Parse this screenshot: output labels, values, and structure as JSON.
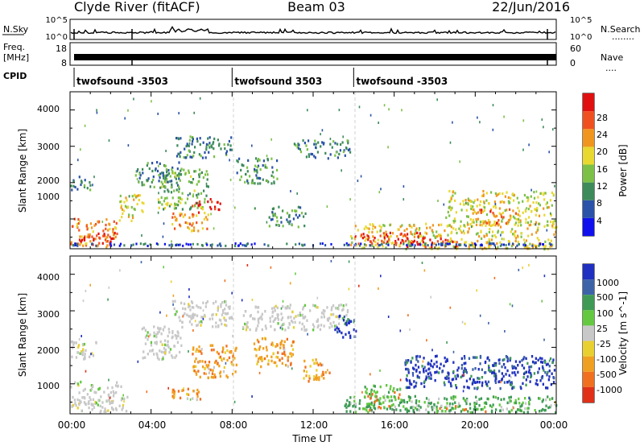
{
  "header": {
    "station": "Clyde River (fitACF)",
    "beam": "Beam 03",
    "date": "22/Jun/2016"
  },
  "housekeeping": {
    "nsky_label": "N.Sky",
    "nsearch_label": "N.Search",
    "nsearch_dots": "........",
    "noise_axis_top": "10^5",
    "noise_axis_bottom": "10^0",
    "freq_label": "Freq.",
    "freq_unit": "[MHz]",
    "freq_ticks": [
      "18",
      "8"
    ],
    "nave_label": "Nave",
    "nave_dots": "....",
    "nave_ticks": [
      "60",
      "0"
    ],
    "cpid_label": "CPID",
    "cpid_segments": [
      {
        "name": "twofsound -3503",
        "start_hour": 0.2,
        "end_hour": 8.0
      },
      {
        "name": "twofsound 3503",
        "start_hour": 8.0,
        "end_hour": 14.0
      },
      {
        "name": "twofsound -3503",
        "start_hour": 14.0,
        "end_hour": 24.0
      }
    ]
  },
  "colors": {
    "power_scale": [
      "#1010ee",
      "#2a52a8",
      "#3d8a5a",
      "#7cc048",
      "#e8d830",
      "#f0961e",
      "#f05020",
      "#e01010"
    ],
    "velocity_scale": [
      "#2030c0",
      "#3c62a8",
      "#3e9a55",
      "#64c840",
      "#c8c8c8",
      "#e8d030",
      "#f0a020",
      "#f07020",
      "#e03018"
    ]
  },
  "chart_data": [
    {
      "type": "heatmap",
      "title": "",
      "xlabel": "Time UT",
      "ylabel": "Slant Range [km]",
      "x_ticks": [
        "00:00",
        "04:00",
        "08:00",
        "12:00",
        "16:00",
        "20:00",
        "00:00"
      ],
      "y_ticks": [
        "1000",
        "2000",
        "3000",
        "4000"
      ],
      "xlim_hours": [
        0,
        24
      ],
      "ylim_km": [
        180,
        4500
      ],
      "colorbar_label": "Power [dB]",
      "colorbar_ticks": [
        "4",
        "8",
        "12",
        "16",
        "20",
        "24",
        "28"
      ],
      "colorbar_range_db": [
        0,
        32
      ],
      "regions": [
        {
          "t0": 0.0,
          "t1": 2.3,
          "r0": 250,
          "r1": 1050,
          "level": 0.75
        },
        {
          "t0": 0.4,
          "t1": 2.2,
          "r0": 350,
          "r1": 650,
          "level": 0.97
        },
        {
          "t0": 0.0,
          "t1": 1.0,
          "r0": 1800,
          "r1": 2200,
          "level": 0.25
        },
        {
          "t0": 2.4,
          "t1": 3.6,
          "r0": 900,
          "r1": 1700,
          "level": 0.55
        },
        {
          "t0": 3.2,
          "t1": 5.5,
          "r0": 1900,
          "r1": 2600,
          "level": 0.25
        },
        {
          "t0": 5.0,
          "t1": 6.8,
          "r0": 700,
          "r1": 1200,
          "level": 0.7
        },
        {
          "t0": 6.0,
          "t1": 7.4,
          "r0": 1200,
          "r1": 1600,
          "level": 0.97
        },
        {
          "t0": 5.2,
          "t1": 8.0,
          "r0": 2700,
          "r1": 3300,
          "level": 0.25
        },
        {
          "t0": 4.3,
          "t1": 6.8,
          "r0": 1300,
          "r1": 2400,
          "level": 0.4
        },
        {
          "t0": 8.2,
          "t1": 10.3,
          "r0": 2000,
          "r1": 2700,
          "level": 0.3
        },
        {
          "t0": 9.8,
          "t1": 11.6,
          "r0": 800,
          "r1": 1400,
          "level": 0.3
        },
        {
          "t0": 11.0,
          "t1": 13.8,
          "r0": 2700,
          "r1": 3200,
          "level": 0.25
        },
        {
          "t0": 13.8,
          "t1": 24.0,
          "r0": 200,
          "r1": 900,
          "level": 0.6
        },
        {
          "t0": 14.0,
          "t1": 17.5,
          "r0": 350,
          "r1": 650,
          "level": 0.97
        },
        {
          "t0": 16.0,
          "t1": 19.5,
          "r0": 250,
          "r1": 500,
          "level": 0.97
        },
        {
          "t0": 18.5,
          "t1": 23.9,
          "r0": 850,
          "r1": 1800,
          "level": 0.55
        },
        {
          "t0": 20.0,
          "t1": 22.0,
          "r0": 900,
          "r1": 1300,
          "level": 0.82
        }
      ]
    },
    {
      "type": "heatmap",
      "title": "",
      "xlabel": "Time UT",
      "ylabel": "Slant Range [km]",
      "x_ticks": [
        "00:00",
        "04:00",
        "08:00",
        "12:00",
        "16:00",
        "20:00",
        "00:00"
      ],
      "y_ticks": [
        "1000",
        "2000",
        "3000",
        "4000"
      ],
      "xlim_hours": [
        0,
        24
      ],
      "ylim_km": [
        180,
        4500
      ],
      "colorbar_label": "Velocity [m s^-1]",
      "colorbar_ticks": [
        "1000",
        "500",
        "100",
        "25",
        "-25",
        "-100",
        "-500",
        "-1000"
      ],
      "regions": [
        {
          "t0": 0.0,
          "t1": 2.8,
          "r0": 250,
          "r1": 1100,
          "kind": "grey"
        },
        {
          "t0": 0.0,
          "t1": 1.3,
          "r0": 1700,
          "r1": 2200,
          "kind": "grey"
        },
        {
          "t0": 3.5,
          "t1": 5.5,
          "r0": 1700,
          "r1": 2600,
          "kind": "grey"
        },
        {
          "t0": 5.0,
          "t1": 8.0,
          "r0": 2600,
          "r1": 3300,
          "kind": "grey"
        },
        {
          "t0": 8.5,
          "t1": 13.7,
          "r0": 2500,
          "r1": 3200,
          "kind": "grey"
        },
        {
          "t0": 5.0,
          "t1": 6.5,
          "r0": 600,
          "r1": 900,
          "kind": "orange"
        },
        {
          "t0": 6.0,
          "t1": 8.2,
          "r0": 1200,
          "r1": 2100,
          "kind": "orange"
        },
        {
          "t0": 9.0,
          "t1": 11.0,
          "r0": 1500,
          "r1": 2300,
          "kind": "orange"
        },
        {
          "t0": 11.5,
          "t1": 12.8,
          "r0": 1100,
          "r1": 1700,
          "kind": "orange"
        },
        {
          "t0": 13.0,
          "t1": 14.1,
          "r0": 2300,
          "r1": 2900,
          "kind": "blue"
        },
        {
          "t0": 13.5,
          "t1": 24.0,
          "r0": 250,
          "r1": 700,
          "kind": "green"
        },
        {
          "t0": 14.5,
          "t1": 16.5,
          "r0": 300,
          "r1": 1000,
          "kind": "greenlight"
        },
        {
          "t0": 16.5,
          "t1": 23.9,
          "r0": 900,
          "r1": 1800,
          "kind": "blue"
        },
        {
          "t0": 18.0,
          "t1": 21.0,
          "r0": 250,
          "r1": 450,
          "kind": "greenlight"
        }
      ]
    }
  ]
}
